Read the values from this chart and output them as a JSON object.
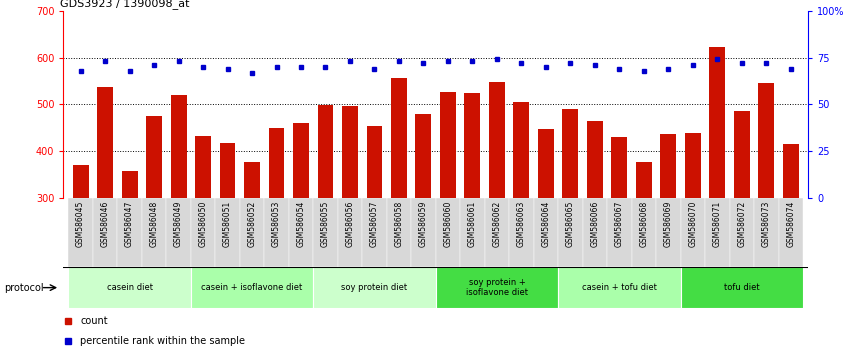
{
  "title": "GDS3923 / 1390098_at",
  "samples": [
    "GSM586045",
    "GSM586046",
    "GSM586047",
    "GSM586048",
    "GSM586049",
    "GSM586050",
    "GSM586051",
    "GSM586052",
    "GSM586053",
    "GSM586054",
    "GSM586055",
    "GSM586056",
    "GSM586057",
    "GSM586058",
    "GSM586059",
    "GSM586060",
    "GSM586061",
    "GSM586062",
    "GSM586063",
    "GSM586064",
    "GSM586065",
    "GSM586066",
    "GSM586067",
    "GSM586068",
    "GSM586069",
    "GSM586070",
    "GSM586071",
    "GSM586072",
    "GSM586073",
    "GSM586074"
  ],
  "counts": [
    370,
    537,
    358,
    475,
    520,
    433,
    418,
    378,
    450,
    460,
    498,
    497,
    453,
    557,
    480,
    527,
    525,
    547,
    505,
    447,
    490,
    465,
    430,
    378,
    437,
    440,
    622,
    487,
    545,
    415
  ],
  "percentile_ranks": [
    68,
    73,
    68,
    71,
    73,
    70,
    69,
    67,
    70,
    70,
    70,
    73,
    69,
    73,
    72,
    73,
    73,
    74,
    72,
    70,
    72,
    71,
    69,
    68,
    69,
    71,
    74,
    72,
    72,
    69
  ],
  "ylim_left": [
    300,
    700
  ],
  "ylim_right": [
    0,
    100
  ],
  "bar_color": "#cc1100",
  "dot_color": "#0000cc",
  "protocol_groups": [
    {
      "label": "casein diet",
      "start": 0,
      "end": 4,
      "color": "#ccffcc"
    },
    {
      "label": "casein + isoflavone diet",
      "start": 5,
      "end": 9,
      "color": "#aaffaa"
    },
    {
      "label": "soy protein diet",
      "start": 10,
      "end": 14,
      "color": "#ccffcc"
    },
    {
      "label": "soy protein +\nisoflavone diet",
      "start": 15,
      "end": 19,
      "color": "#55ee55"
    },
    {
      "label": "casein + tofu diet",
      "start": 20,
      "end": 24,
      "color": "#aaffaa"
    },
    {
      "label": "tofu diet",
      "start": 25,
      "end": 29,
      "color": "#55ee55"
    }
  ],
  "legend_count_label": "count",
  "legend_pct_label": "percentile rank within the sample",
  "background_color": "#ffffff",
  "ticklabel_bg": "#d8d8d8",
  "right_yticks": [
    0,
    25,
    50,
    75,
    100
  ],
  "right_yticklabels": [
    "0",
    "25",
    "50",
    "75",
    "100%"
  ],
  "left_yticks": [
    300,
    400,
    500,
    600,
    700
  ],
  "gridlines": [
    400,
    500,
    600
  ]
}
